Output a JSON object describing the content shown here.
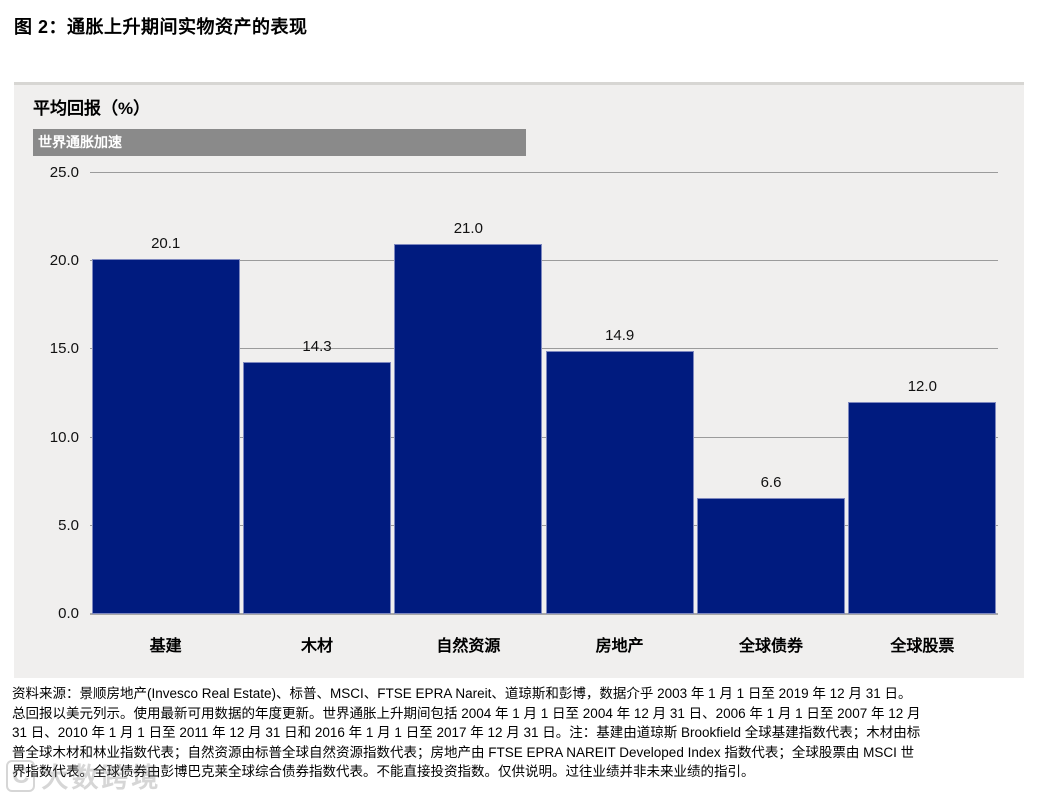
{
  "page": {
    "title": "图 2：通胀上升期间实物资产的表现"
  },
  "panel": {
    "header": "平均回报（%）",
    "banner": "世界通胀加速",
    "banner_bg": "#8a8a8a",
    "panel_bg": "#f0efee"
  },
  "chart_data": {
    "type": "bar",
    "title": "平均回报（%）",
    "annotation_banner": "世界通胀加速",
    "categories": [
      "基建",
      "木材",
      "自然资源",
      "房地产",
      "全球债券",
      "全球股票"
    ],
    "values": [
      20.1,
      14.3,
      21.0,
      14.9,
      6.6,
      12.0
    ],
    "data_labels": [
      "20.1",
      "14.3",
      "21.0",
      "14.9",
      "6.6",
      "12.0"
    ],
    "xlabel": "",
    "ylabel": "平均回报（%）",
    "ylim": [
      0,
      25
    ],
    "yticks": [
      "0.0",
      "5.0",
      "10.0",
      "15.0",
      "20.0",
      "25.0"
    ],
    "grid": true,
    "legend": "none",
    "bar_color": "#001b7f"
  },
  "footer": {
    "lines": [
      "资料来源：景顺房地产(Invesco Real Estate)、标普、MSCI、FTSE EPRA Nareit、道琼斯和彭博，数据介乎 2003 年 1 月 1 日至 2019 年 12 月 31 日。",
      "总回报以美元列示。使用最新可用数据的年度更新。世界通胀上升期间包括 2004 年 1 月 1 日至 2004 年 12 月 31 日、2006 年 1 月 1 日至 2007 年 12 月",
      "31 日、2010 年 1 月 1 日至 2011 年 12 月 31 日和 2016 年 1 月 1 日至 2017 年 12 月 31 日。注：基建由道琼斯 Brookfield 全球基建指数代表；木材由标",
      "普全球木材和林业指数代表；自然资源由标普全球自然资源指数代表；房地产由 FTSE EPRA NAREIT Developed Index 指数代表；全球股票由 MSCI 世",
      "界指数代表。全球债券由彭博巴克莱全球综合债券指数代表。不能直接投资指数。仅供说明。过往业绩并非未来业绩的指引。"
    ]
  },
  "watermark": {
    "logo": "C",
    "text": "大数跨境"
  }
}
